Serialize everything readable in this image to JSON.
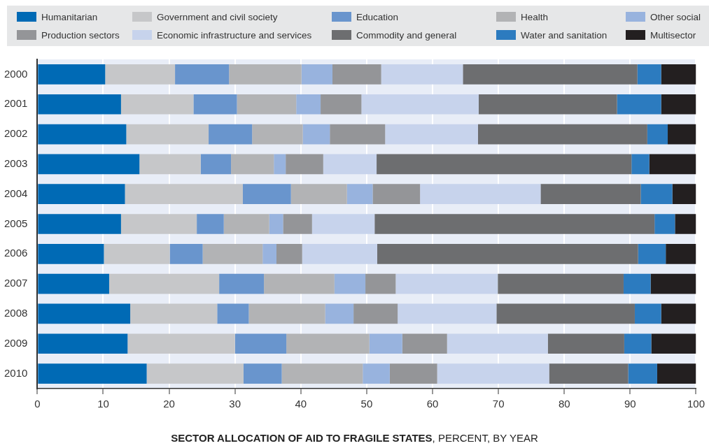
{
  "chart_data": {
    "type": "bar",
    "orientation": "horizontal",
    "stacked": true,
    "xlabel": "SECTOR ALLOCATION OF AID TO FRAGILE STATES, PERCENT, BY YEAR",
    "categories": [
      "2000",
      "2001",
      "2002",
      "2003",
      "2004",
      "2005",
      "2006",
      "2007",
      "2008",
      "2009",
      "2010"
    ],
    "xlim": [
      0,
      100
    ],
    "xticks": [
      0,
      10,
      20,
      30,
      40,
      50,
      60,
      70,
      80,
      90,
      100
    ],
    "grid": "x",
    "legend": "top",
    "series": [
      {
        "name": "Humanitarian",
        "color": "#006ab5",
        "values": [
          10.3,
          12.7,
          13.5,
          15.5,
          13.3,
          12.7,
          10.1,
          10.9,
          14.1,
          13.7,
          16.6
        ]
      },
      {
        "name": "Government and civil society",
        "color": "#c6c7c9",
        "values": [
          10.6,
          11.0,
          12.5,
          9.3,
          17.9,
          11.5,
          10.0,
          16.7,
          13.2,
          16.3,
          14.7
        ]
      },
      {
        "name": "Education",
        "color": "#6995cd",
        "values": [
          8.2,
          6.6,
          6.6,
          4.6,
          7.3,
          4.1,
          5.0,
          6.8,
          4.8,
          7.8,
          5.8
        ]
      },
      {
        "name": "Health",
        "color": "#b2b3b5",
        "values": [
          11.0,
          9.0,
          7.7,
          6.5,
          8.5,
          6.9,
          9.1,
          10.7,
          11.6,
          12.6,
          12.3
        ]
      },
      {
        "name": "Other social",
        "color": "#98b3de",
        "values": [
          4.7,
          3.7,
          4.1,
          1.8,
          3.9,
          2.1,
          2.1,
          4.7,
          4.3,
          5.0,
          4.1
        ]
      },
      {
        "name": "Production sectors",
        "color": "#949598",
        "values": [
          7.4,
          6.2,
          8.4,
          5.7,
          7.2,
          4.4,
          3.9,
          4.6,
          6.7,
          6.8,
          7.2
        ]
      },
      {
        "name": "Economic infrastructure and services",
        "color": "#c7d3ec",
        "values": [
          12.4,
          17.8,
          14.1,
          8.1,
          18.3,
          9.5,
          11.4,
          15.5,
          15.0,
          15.3,
          17.0
        ]
      },
      {
        "name": "Commodity and general",
        "color": "#6d6e70",
        "values": [
          26.5,
          21.0,
          25.7,
          38.7,
          15.2,
          42.5,
          39.6,
          19.1,
          21.0,
          11.6,
          12.0
        ]
      },
      {
        "name": "Water and sanitation",
        "color": "#2c7bbf",
        "values": [
          3.6,
          6.7,
          3.1,
          2.7,
          4.8,
          3.1,
          4.2,
          4.1,
          4.0,
          4.1,
          4.4
        ]
      },
      {
        "name": "Multisector",
        "color": "#231f20",
        "values": [
          5.3,
          5.3,
          4.3,
          7.1,
          3.6,
          3.2,
          4.6,
          6.9,
          5.3,
          6.8,
          5.9
        ]
      }
    ]
  }
}
